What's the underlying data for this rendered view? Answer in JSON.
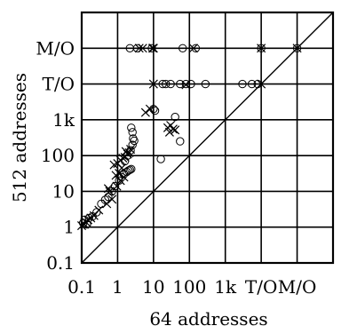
{
  "chart_data": {
    "type": "scatter",
    "title": "",
    "xlabel": "64 addresses",
    "ylabel": "512 addresses",
    "scale": "log10",
    "xlim": [
      0.1,
      1000000
    ],
    "ylim": [
      0.1,
      1000000
    ],
    "grid": true,
    "diagonal_line": "y = x",
    "x_ticks": [
      {
        "value": 0.1,
        "label": "0.1"
      },
      {
        "value": 1,
        "label": "1"
      },
      {
        "value": 10,
        "label": "10"
      },
      {
        "value": 100,
        "label": "100"
      },
      {
        "value": 1000,
        "label": "1k"
      },
      {
        "value": 10000,
        "label": "T/O"
      },
      {
        "value": 100000,
        "label": "M/O"
      }
    ],
    "y_ticks": [
      {
        "value": 0.1,
        "label": "0.1"
      },
      {
        "value": 1,
        "label": "1"
      },
      {
        "value": 10,
        "label": "10"
      },
      {
        "value": 100,
        "label": "100"
      },
      {
        "value": 1000,
        "label": "1k"
      },
      {
        "value": 10000,
        "label": "T/O"
      },
      {
        "value": 100000,
        "label": "M/O"
      }
    ],
    "series": [
      {
        "marker": "circle",
        "points": [
          [
            0.11,
            1.3
          ],
          [
            0.12,
            1.6
          ],
          [
            0.14,
            1.2
          ],
          [
            0.16,
            1.8
          ],
          [
            0.2,
            2.0
          ],
          [
            0.26,
            2.6
          ],
          [
            0.35,
            4.5
          ],
          [
            0.45,
            5.8
          ],
          [
            0.55,
            7.0
          ],
          [
            0.7,
            10.0
          ],
          [
            0.85,
            14.0
          ],
          [
            1.1,
            20.0
          ],
          [
            1.3,
            25.0
          ],
          [
            1.5,
            30.0
          ],
          [
            1.8,
            35.0
          ],
          [
            2.0,
            38.0
          ],
          [
            2.2,
            40.0
          ],
          [
            2.4,
            42.0
          ],
          [
            1.6,
            70.0
          ],
          [
            1.9,
            100.0
          ],
          [
            2.3,
            140.0
          ],
          [
            2.6,
            200.0
          ],
          [
            2.7,
            300.0
          ],
          [
            2.6,
            450.0
          ],
          [
            2.4,
            600.0
          ],
          [
            2.9,
            260.0
          ],
          [
            10.0,
            2000.0
          ],
          [
            11.0,
            1800.0
          ],
          [
            16.0,
            80.0
          ],
          [
            40.0,
            1200.0
          ],
          [
            55.0,
            250.0
          ],
          [
            18.0,
            10000.0
          ],
          [
            22.0,
            10000.0
          ],
          [
            30.0,
            10000.0
          ],
          [
            55.0,
            10000.0
          ],
          [
            80.0,
            10000.0
          ],
          [
            110.0,
            10000.0
          ],
          [
            280.0,
            10000.0
          ],
          [
            3000.0,
            10000.0
          ],
          [
            5500.0,
            10000.0
          ],
          [
            8000.0,
            10000.0
          ],
          [
            2.2,
            100000.0
          ],
          [
            3.5,
            100000.0
          ],
          [
            9.0,
            100000.0
          ],
          [
            65.0,
            100000.0
          ],
          [
            150.0,
            100000.0
          ],
          [
            10000.0,
            100000.0
          ],
          [
            100000.0,
            100000.0
          ]
        ]
      },
      {
        "marker": "cross",
        "points": [
          [
            0.1,
            1.1
          ],
          [
            0.12,
            1.2
          ],
          [
            0.13,
            1.4
          ],
          [
            0.15,
            1.6
          ],
          [
            0.18,
            1.8
          ],
          [
            0.22,
            2.1
          ],
          [
            0.3,
            3.0
          ],
          [
            0.5,
            4.5
          ],
          [
            0.7,
            6.0
          ],
          [
            0.95,
            14.0
          ],
          [
            1.2,
            20.0
          ],
          [
            1.5,
            25.0
          ],
          [
            0.55,
            12.0
          ],
          [
            0.6,
            10.0
          ],
          [
            0.9,
            28.0
          ],
          [
            1.1,
            32.0
          ],
          [
            1.3,
            45.0
          ],
          [
            0.8,
            55.0
          ],
          [
            1.0,
            60.0
          ],
          [
            1.2,
            75.0
          ],
          [
            1.4,
            85.0
          ],
          [
            1.6,
            90.0
          ],
          [
            1.9,
            110.0
          ],
          [
            2.1,
            120.0
          ],
          [
            1.7,
            130.0
          ],
          [
            2.3,
            150.0
          ],
          [
            6.0,
            1600.0
          ],
          [
            8.0,
            2000.0
          ],
          [
            25.0,
            600.0
          ],
          [
            28.0,
            450.0
          ],
          [
            30.0,
            700.0
          ],
          [
            35.0,
            550.0
          ],
          [
            40.0,
            520.0
          ],
          [
            10.0,
            10000.0
          ],
          [
            80.0,
            9500.0
          ],
          [
            10000.0,
            10000.0
          ],
          [
            4.0,
            100000.0
          ],
          [
            5.0,
            100000.0
          ],
          [
            9.5,
            100000.0
          ],
          [
            10.0,
            100000.0
          ],
          [
            130.0,
            100000.0
          ],
          [
            10000.0,
            100000.0
          ],
          [
            100000.0,
            100000.0
          ]
        ]
      }
    ]
  }
}
